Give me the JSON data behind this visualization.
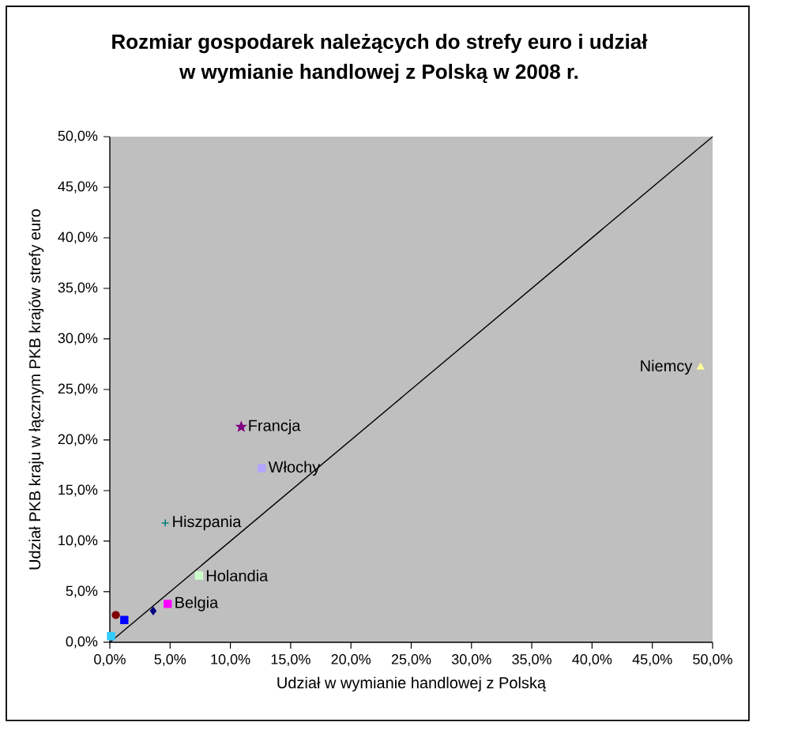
{
  "chart_data": {
    "type": "scatter",
    "title": "Rozmiar gospodarek należących do strefy euro i udział w wymianie handlowej z Polską w 2008 r.",
    "xlabel": "Udział w wymianie handlowej z Polską",
    "ylabel": "Udział PKB kraju w łącznym PKB krajów strefy euro",
    "xlim": [
      0,
      50
    ],
    "ylim": [
      0,
      50
    ],
    "xticks": [
      {
        "value": 0,
        "label": "0,0%"
      },
      {
        "value": 5,
        "label": "5,0%"
      },
      {
        "value": 10,
        "label": "10,0%"
      },
      {
        "value": 15,
        "label": "15,0%"
      },
      {
        "value": 20,
        "label": "20,0%"
      },
      {
        "value": 25,
        "label": "25,0%"
      },
      {
        "value": 30,
        "label": "30,0%"
      },
      {
        "value": 35,
        "label": "35,0%"
      },
      {
        "value": 40,
        "label": "40,0%"
      },
      {
        "value": 45,
        "label": "45,0%"
      },
      {
        "value": 50,
        "label": "50,0%"
      }
    ],
    "yticks": [
      {
        "value": 0,
        "label": "0,0%"
      },
      {
        "value": 5,
        "label": "5,0%"
      },
      {
        "value": 10,
        "label": "10,0%"
      },
      {
        "value": 15,
        "label": "15,0%"
      },
      {
        "value": 20,
        "label": "20,0%"
      },
      {
        "value": 25,
        "label": "25,0%"
      },
      {
        "value": 30,
        "label": "30,0%"
      },
      {
        "value": 35,
        "label": "35,0%"
      },
      {
        "value": 40,
        "label": "40,0%"
      },
      {
        "value": 45,
        "label": "45,0%"
      },
      {
        "value": 50,
        "label": "50,0%"
      }
    ],
    "series": [
      {
        "type": "line",
        "color": "#000000",
        "marker": "none",
        "x": [
          0,
          50
        ],
        "values": [
          0,
          50
        ]
      },
      {
        "name": "Niemcy",
        "color": "#ffff99",
        "marker": "triangle",
        "x": [
          49.0
        ],
        "values": [
          27.2
        ]
      },
      {
        "name": "Francja",
        "color": "#800080",
        "marker": "star",
        "x": [
          10.9
        ],
        "values": [
          21.3
        ]
      },
      {
        "name": "Włochy",
        "color": "#b3a6ff",
        "marker": "square",
        "x": [
          12.6
        ],
        "values": [
          17.2
        ]
      },
      {
        "name": "Hiszpania",
        "color": "#008080",
        "marker": "cross",
        "x": [
          4.6
        ],
        "values": [
          11.8
        ]
      },
      {
        "name": "Holandia",
        "color": "#ccffcc",
        "marker": "square",
        "x": [
          7.4
        ],
        "values": [
          6.6
        ]
      },
      {
        "name": "Belgia",
        "color": "#ff00ff",
        "marker": "square",
        "x": [
          4.8
        ],
        "values": [
          3.8
        ]
      },
      {
        "color": "#000080",
        "marker": "diamond",
        "x": [
          3.6
        ],
        "values": [
          3.1
        ]
      },
      {
        "color": "#800000",
        "marker": "circle",
        "x": [
          0.5
        ],
        "values": [
          2.7
        ]
      },
      {
        "color": "#0000ff",
        "marker": "square",
        "x": [
          1.2
        ],
        "values": [
          2.2
        ]
      },
      {
        "color": "#33ccff",
        "marker": "square",
        "x": [
          0.1
        ],
        "values": [
          0.6
        ]
      }
    ]
  }
}
